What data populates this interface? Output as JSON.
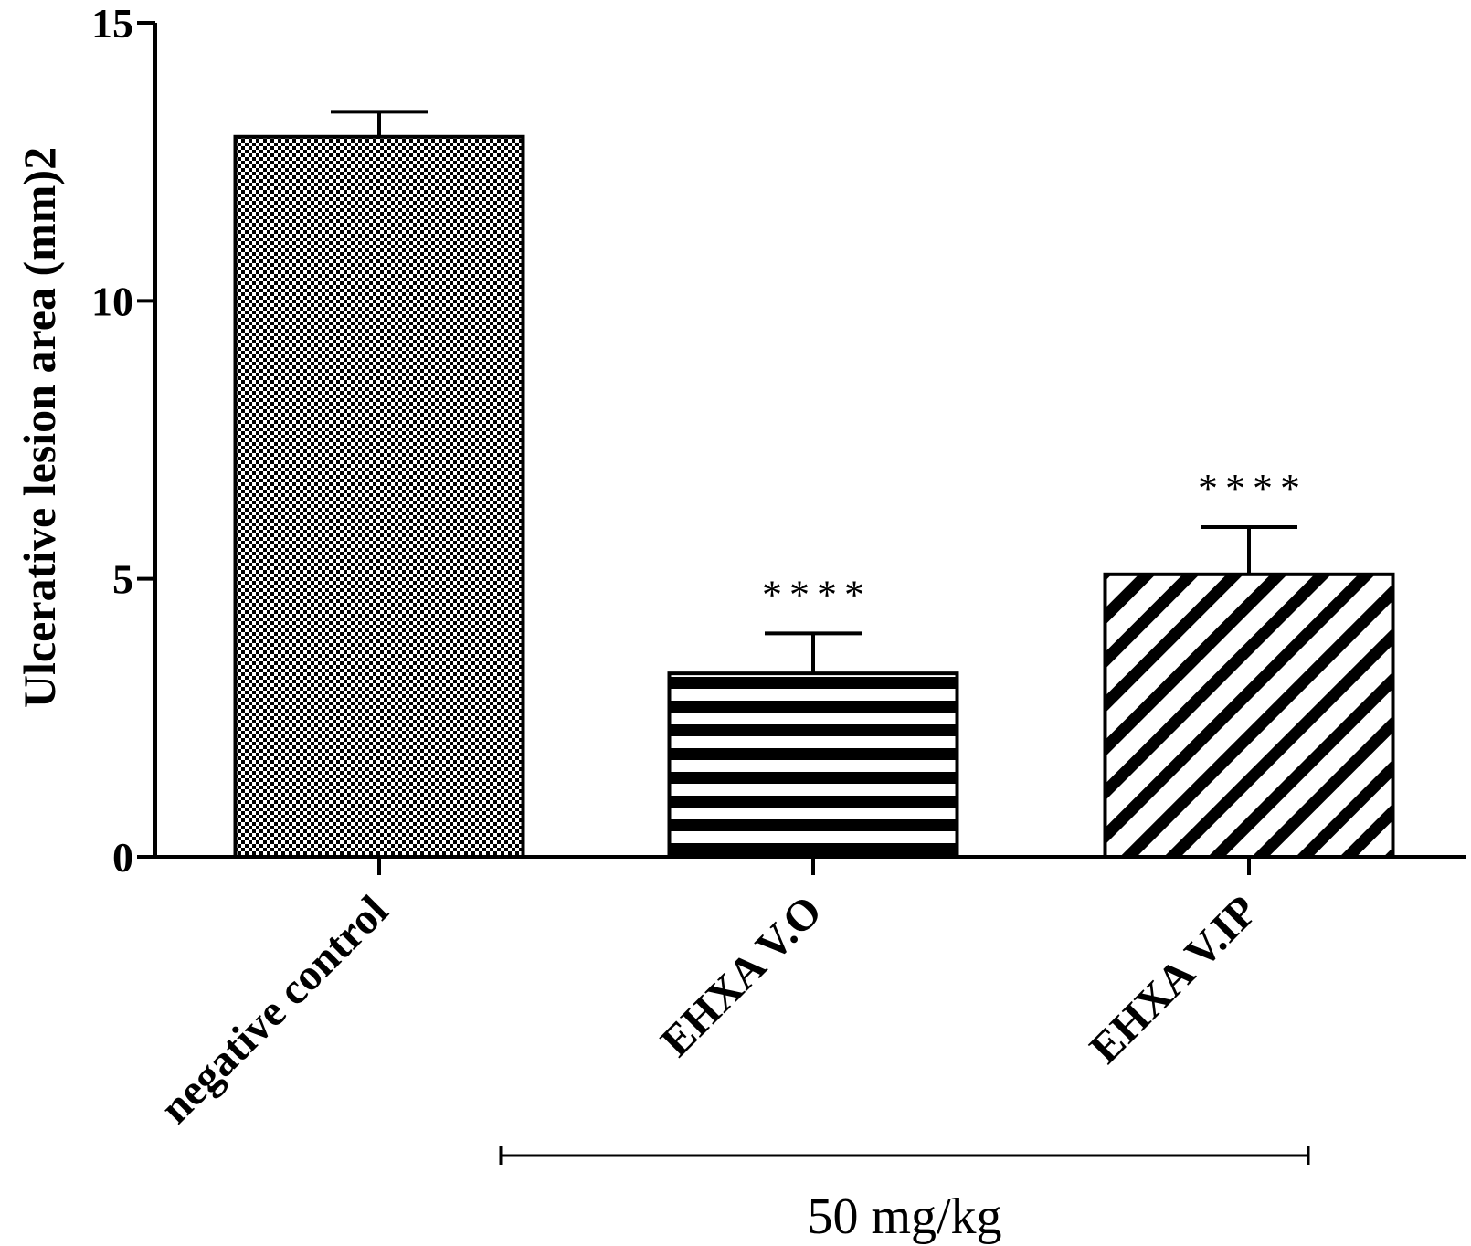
{
  "chart_data": {
    "type": "bar",
    "title": "",
    "xlabel": "",
    "ylabel": "Ulcerative lesion area (mm)2",
    "ylim": [
      0,
      15
    ],
    "yticks": [
      0,
      5,
      10,
      15
    ],
    "categories": [
      "negative control",
      "EHXA V.O",
      "EHXA V.IP"
    ],
    "values": [
      12.95,
      3.3,
      5.08
    ],
    "errors": [
      0.45,
      0.72,
      0.85
    ],
    "patterns": [
      "checker",
      "horizontal-stripes",
      "diagonal-stripes"
    ],
    "significance": [
      "",
      "****",
      "****"
    ],
    "group_bracket": {
      "label": "50 mg/kg",
      "from_category": 1,
      "to_category": 2
    }
  }
}
